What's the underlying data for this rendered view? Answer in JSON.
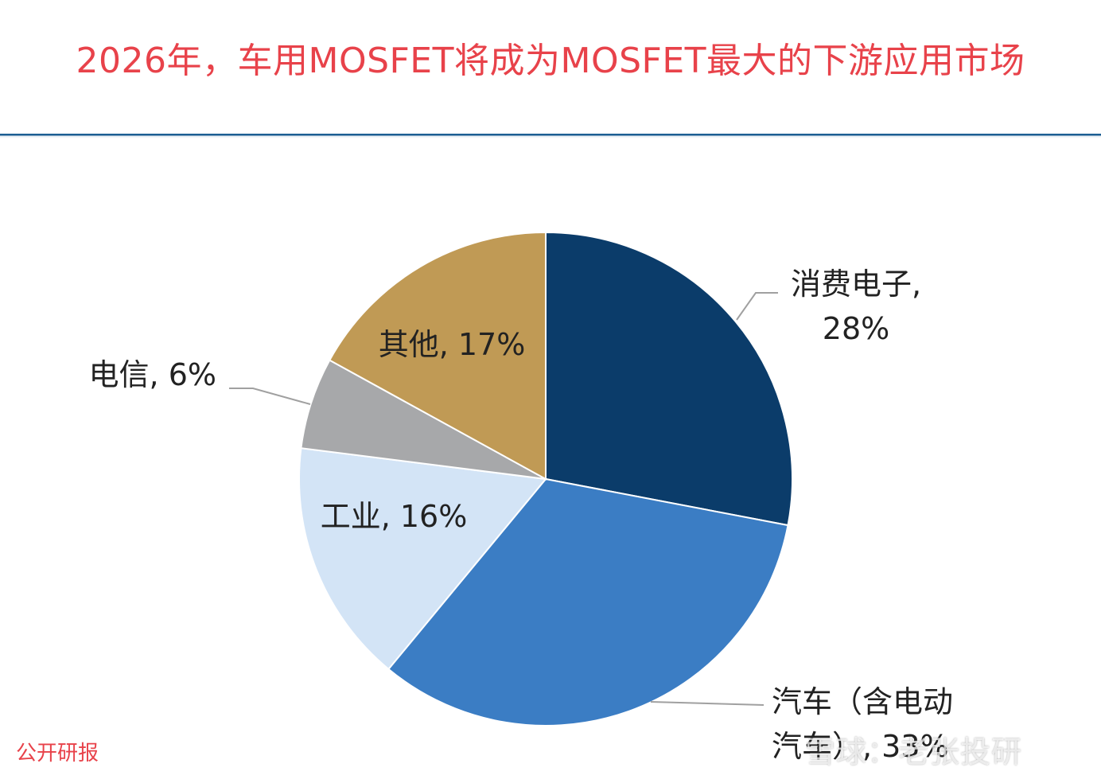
{
  "title": "2026年，车用MOSFET将成为MOSFET最大的下游应用市场",
  "source": "公开研报",
  "watermark": "雪球：老张投研",
  "chart_data": {
    "type": "pie",
    "title": "",
    "start_angle_deg": 0,
    "direction": "clockwise",
    "slices": [
      {
        "name": "消费电子",
        "value": 28,
        "label_lines": [
          "消费电子,",
          "28%"
        ],
        "color": "#0b3c6a"
      },
      {
        "name": "汽车（含电动汽车）",
        "value": 33,
        "label_lines": [
          "汽车（含电动",
          "汽车）, 33%"
        ],
        "color": "#3b7dc4"
      },
      {
        "name": "工业",
        "value": 16,
        "label_lines": [
          "工业, 16%"
        ],
        "color": "#d3e4f6"
      },
      {
        "name": "电信",
        "value": 6,
        "label_lines": [
          "电信, 6%"
        ],
        "color": "#a7a8aa"
      },
      {
        "name": "其他",
        "value": 17,
        "label_lines": [
          "其他, 17%"
        ],
        "color": "#c09a55"
      }
    ]
  }
}
